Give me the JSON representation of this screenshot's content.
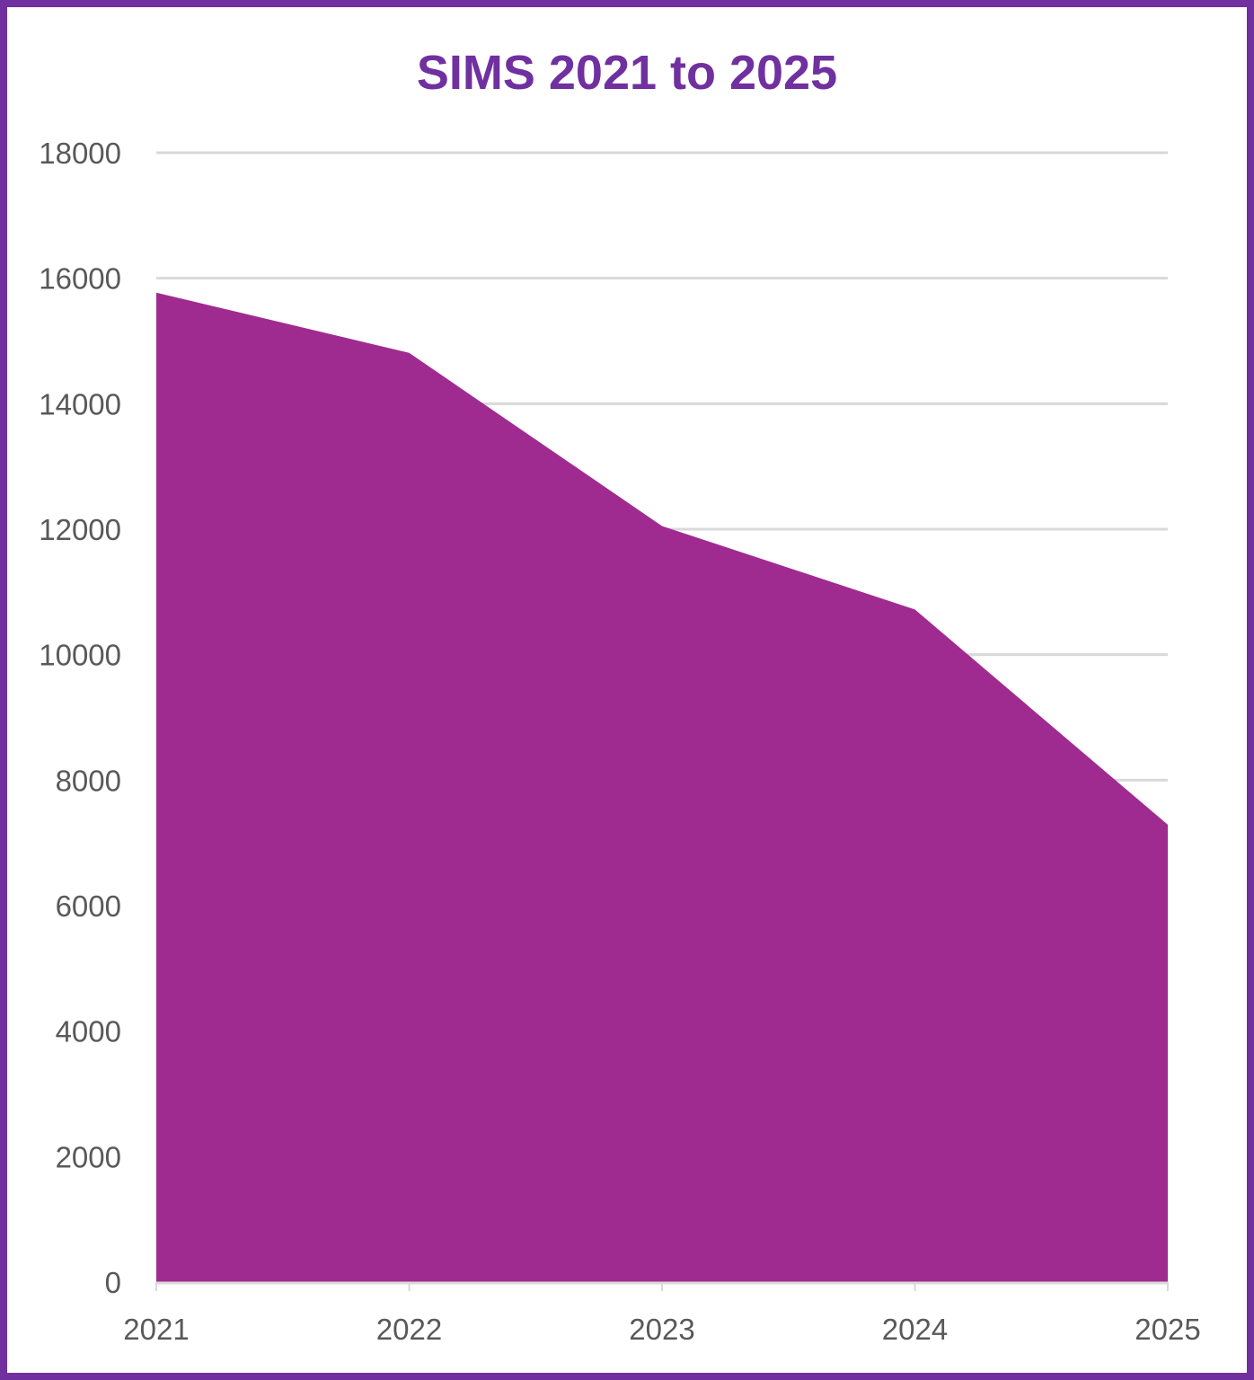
{
  "chart_data": {
    "type": "area",
    "title": "SIMS 2021 to 2025",
    "xlabel": "",
    "ylabel": "",
    "categories": [
      "2021",
      "2022",
      "2023",
      "2024",
      "2025"
    ],
    "values": [
      15770,
      14810,
      12050,
      10720,
      7290
    ],
    "ylim": [
      0,
      18000
    ],
    "yticks": [
      "0",
      "2000",
      "4000",
      "6000",
      "8000",
      "10000",
      "12000",
      "14000",
      "16000",
      "18000"
    ],
    "grid": true,
    "legend": "none",
    "colors": {
      "fill": "#a02b90",
      "title": "#7030a0",
      "border": "#7030a0",
      "grid": "#d9d9d9",
      "text": "#595959"
    }
  }
}
